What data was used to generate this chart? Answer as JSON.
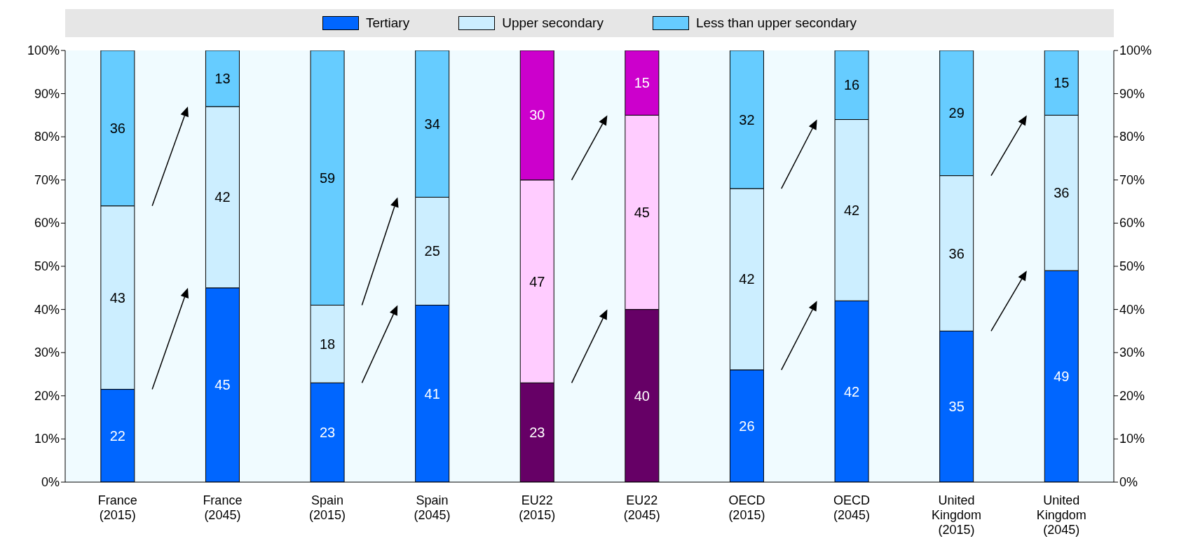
{
  "chart_data": {
    "type": "bar",
    "stacked": true,
    "legend": "top",
    "grid": false,
    "categories": [
      "France (2015)",
      "France (2045)",
      "Spain (2015)",
      "Spain (2045)",
      "EU22 (2015)",
      "EU22 (2045)",
      "OECD (2015)",
      "OECD (2045)",
      "United Kingdom (2015)",
      "United Kingdom (2045)"
    ],
    "series": [
      {
        "name": "Tertiary",
        "color": "#0066ff",
        "colors": [
          "#0066ff",
          "#0066ff",
          "#0066ff",
          "#0066ff",
          "#660066",
          "#660066",
          "#0066ff",
          "#0066ff",
          "#0066ff",
          "#0066ff"
        ],
        "values": [
          21.5,
          45,
          23,
          41,
          23,
          40,
          26,
          42,
          35,
          49
        ],
        "value_labels": [
          "22",
          "45",
          "23",
          "41",
          "23",
          "40",
          "26",
          "42",
          "35",
          "49"
        ]
      },
      {
        "name": "Upper secondary",
        "color": "#cceeff",
        "colors": [
          "#cceeff",
          "#cceeff",
          "#cceeff",
          "#cceeff",
          "#ffccff",
          "#ffccff",
          "#cceeff",
          "#cceeff",
          "#cceeff",
          "#cceeff"
        ],
        "values": [
          42.5,
          42,
          18,
          25,
          47,
          45,
          42,
          42,
          36,
          36
        ],
        "value_labels": [
          "43",
          "42",
          "18",
          "25",
          "47",
          "45",
          "42",
          "42",
          "36",
          "36"
        ]
      },
      {
        "name": "Less than upper secondary",
        "color": "#66ccff",
        "colors": [
          "#66ccff",
          "#66ccff",
          "#66ccff",
          "#66ccff",
          "#cc00cc",
          "#cc00cc",
          "#66ccff",
          "#66ccff",
          "#66ccff",
          "#66ccff"
        ],
        "values": [
          36,
          13,
          59,
          34,
          30,
          15,
          32,
          16,
          29,
          15
        ],
        "value_labels": [
          "36",
          "13",
          "59",
          "34",
          "30",
          "15",
          "32",
          "16",
          "29",
          "15"
        ]
      }
    ],
    "ylim": [
      0,
      100
    ],
    "yticks": [
      {
        "value": 0,
        "label": "0%"
      },
      {
        "value": 10,
        "label": "10%"
      },
      {
        "value": 20,
        "label": "20%"
      },
      {
        "value": 30,
        "label": "30%"
      },
      {
        "value": 40,
        "label": "40%"
      },
      {
        "value": 50,
        "label": "50%"
      },
      {
        "value": 60,
        "label": "60%"
      },
      {
        "value": 70,
        "label": "70%"
      },
      {
        "value": 80,
        "label": "80%"
      },
      {
        "value": 90,
        "label": "90%"
      },
      {
        "value": 100,
        "label": "100%"
      }
    ],
    "y2lim": [
      0,
      100
    ],
    "y2ticks": [
      {
        "value": 0,
        "label": "0%"
      },
      {
        "value": 10,
        "label": "10%"
      },
      {
        "value": 20,
        "label": "20%"
      },
      {
        "value": 30,
        "label": "30%"
      },
      {
        "value": 40,
        "label": "40%"
      },
      {
        "value": 50,
        "label": "50%"
      },
      {
        "value": 60,
        "label": "60%"
      },
      {
        "value": 70,
        "label": "70%"
      },
      {
        "value": 80,
        "label": "80%"
      },
      {
        "value": 90,
        "label": "90%"
      },
      {
        "value": 100,
        "label": "100%"
      }
    ]
  }
}
